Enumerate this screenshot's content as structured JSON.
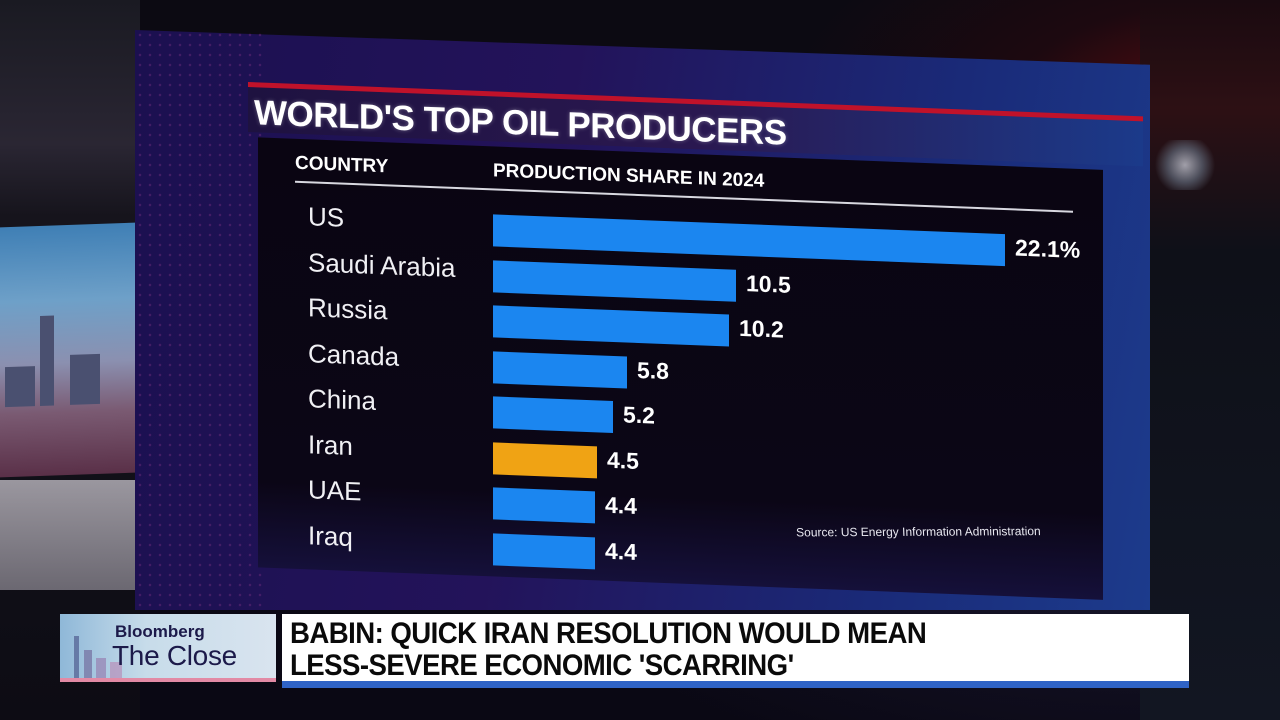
{
  "broadcast": {
    "network": "Bloomberg",
    "show": "The Close",
    "headline_line1": "BABIN: QUICK IRAN RESOLUTION WOULD MEAN",
    "headline_line2": "LESS-SEVERE ECONOMIC 'SCARRING'"
  },
  "colors": {
    "bar": "#1b86f0",
    "highlight_bar": "#f0a314",
    "title_accent": "#c0122a",
    "headline_underline": "#2f63c6"
  },
  "chart": {
    "title": "WORLD'S TOP OIL PRODUCERS",
    "col_country": "COUNTRY",
    "col_production": "PRODUCTION SHARE IN 2024",
    "source": "Source: US Energy Information Administration",
    "rows": [
      {
        "country": "US",
        "label": "22.1%"
      },
      {
        "country": "Saudi Arabia",
        "label": "10.5"
      },
      {
        "country": "Russia",
        "label": "10.2"
      },
      {
        "country": "Canada",
        "label": "5.8"
      },
      {
        "country": "China",
        "label": "5.2"
      },
      {
        "country": "Iran",
        "label": "4.5"
      },
      {
        "country": "UAE",
        "label": "4.4"
      },
      {
        "country": "Iraq",
        "label": "4.4"
      }
    ]
  },
  "chart_data": {
    "type": "bar",
    "orientation": "horizontal",
    "title": "WORLD'S TOP OIL PRODUCERS",
    "subtitle": "PRODUCTION SHARE IN 2024",
    "xlabel": "PRODUCTION SHARE IN 2024",
    "ylabel": "COUNTRY",
    "categories": [
      "US",
      "Saudi Arabia",
      "Russia",
      "Canada",
      "China",
      "Iran",
      "UAE",
      "Iraq"
    ],
    "values": [
      22.1,
      10.5,
      10.2,
      5.8,
      5.2,
      4.5,
      4.4,
      4.4
    ],
    "unit": "%",
    "highlighted": [
      "Iran"
    ],
    "data_labels": [
      "22.1%",
      "10.5",
      "10.2",
      "5.8",
      "5.2",
      "4.5",
      "4.4",
      "4.4"
    ],
    "annotations": [
      "Source: US Energy Information Administration"
    ],
    "grid": false,
    "legend": null
  }
}
